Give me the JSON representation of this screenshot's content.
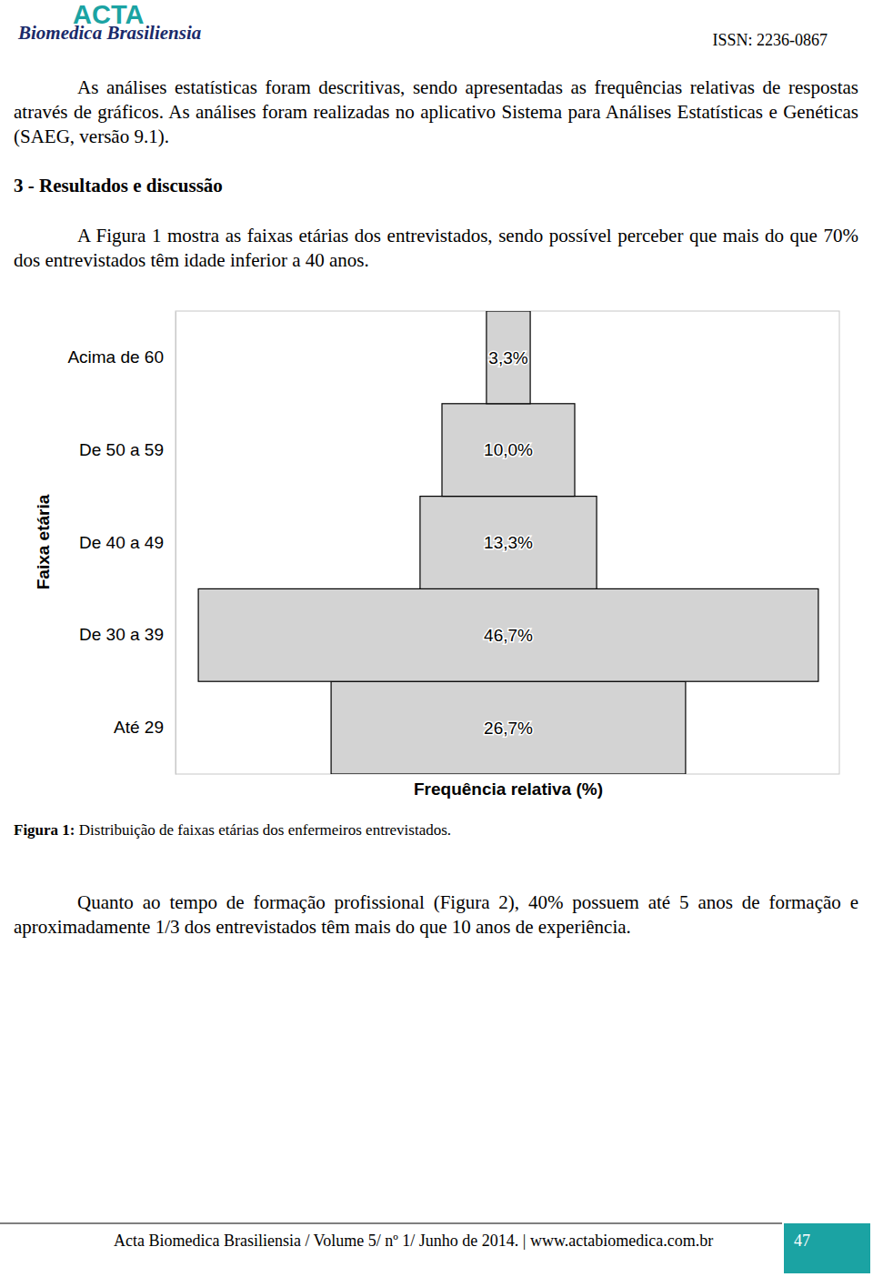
{
  "header": {
    "journal": "ACTA",
    "subtitle": "Biomedica Brasiliensia",
    "issn": "ISSN: 2236-0867"
  },
  "paragraph_1": "As análises estatísticas foram descritivas, sendo apresentadas as frequências relativas de respostas através de gráficos. As análises foram realizadas no aplicativo Sistema para Análises Estatísticas e Genéticas (SAEG, versão 9.1).",
  "heading": "3 - Resultados e discussão",
  "paragraph_2": "A Figura 1 mostra as faixas etárias dos entrevistados, sendo possível perceber que mais do que 70% dos entrevistados têm idade inferior a 40 anos.",
  "chart_data": {
    "type": "bar",
    "orientation": "horizontal",
    "x_label": "Frequência relativa (%)",
    "y_label": "Faixa etária",
    "categories": [
      "Até 29",
      "De 30 a 39",
      "De 40 a 49",
      "De 50 a 59",
      "Acima de 60"
    ],
    "values": [
      26.7,
      46.7,
      13.3,
      10.0,
      3.3
    ],
    "value_labels": [
      "26,7%",
      "46,7%",
      "13,3%",
      "10,0%",
      "3,3%"
    ],
    "color": "#d3d3d3",
    "xlim": [
      0,
      50
    ],
    "data_labels": true,
    "tick_labels": "y",
    "grid": false
  },
  "caption": {
    "label": "Figura 1:",
    "text": "Distribuição de faixas etárias dos enfermeiros entrevistados."
  },
  "paragraph_3": "Quanto ao tempo de formação profissional (Figura 2), 40% possuem até 5 anos de formação e aproximadamente 1/3 dos entrevistados têm mais do que 10 anos de experiência.",
  "footer": {
    "citation": "Acta Biomedica Brasiliensia / Volume 5/ nº 1/ Junho de 2014. | www.actabiomedica.com.br",
    "page": 47
  }
}
